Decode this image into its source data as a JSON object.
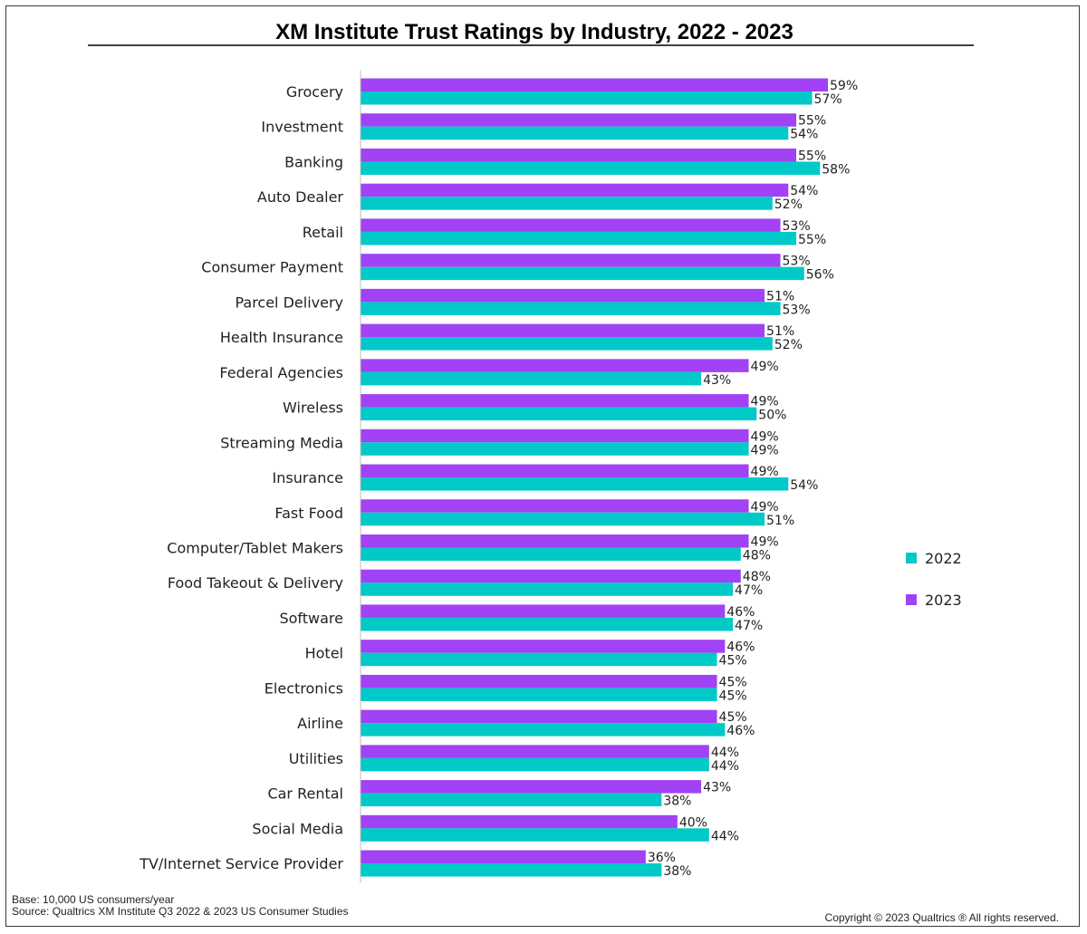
{
  "footer": {
    "base": "Base: 10,000 US consumers/year",
    "source": "Source: Qualtrics XM Institute Q3 2022 & 2023 US Consumer Studies",
    "copyright": "Copyright © 2023 Qualtrics ® All rights reserved."
  },
  "chart_data": {
    "type": "bar",
    "orientation": "horizontal",
    "title": "XM Institute Trust Ratings by Industry, 2022 - 2023",
    "xlabel": "",
    "ylabel": "",
    "value_unit": "%",
    "xlim": [
      0,
      60
    ],
    "grid": false,
    "legend_position": "right",
    "categories": [
      "Grocery",
      "Investment",
      "Banking",
      "Auto Dealer",
      "Retail",
      "Consumer Payment",
      "Parcel Delivery",
      "Health Insurance",
      "Federal Agencies",
      "Wireless",
      "Streaming Media",
      "Insurance",
      "Fast Food",
      "Computer/Tablet Makers",
      "Food Takeout & Delivery",
      "Software",
      "Hotel",
      "Electronics",
      "Airline",
      "Utilities",
      "Car Rental",
      "Social Media",
      "TV/Internet Service Provider"
    ],
    "series": [
      {
        "name": "2023",
        "color": "#a142f4",
        "values": [
          59,
          55,
          55,
          54,
          53,
          53,
          51,
          51,
          49,
          49,
          49,
          49,
          49,
          49,
          48,
          46,
          46,
          45,
          45,
          44,
          43,
          40,
          36
        ]
      },
      {
        "name": "2022",
        "color": "#00c9c8",
        "values": [
          57,
          54,
          58,
          52,
          55,
          56,
          53,
          52,
          43,
          50,
          49,
          54,
          51,
          48,
          47,
          47,
          45,
          45,
          46,
          44,
          38,
          44,
          38
        ]
      }
    ],
    "legend_order": [
      "2022",
      "2023"
    ]
  }
}
